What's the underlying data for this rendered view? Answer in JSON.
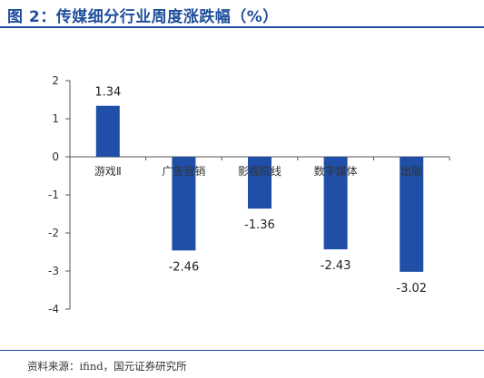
{
  "title": "图 2：传媒细分行业周度涨跌幅（%）",
  "source": "资料来源：ifind，国元证券研究所",
  "colors": {
    "bar": "#1f4fa6",
    "title": "#1f4e9c",
    "axis": "#555555"
  },
  "chart_data": {
    "type": "bar",
    "categories": [
      "游戏Ⅱ",
      "广告营销",
      "影视院线",
      "数字媒体",
      "出版"
    ],
    "values": [
      1.34,
      -2.46,
      -1.36,
      -2.43,
      -3.02
    ],
    "ylim": [
      -4,
      2
    ],
    "yticks": [
      "2",
      "1",
      "0",
      "-1",
      "-2",
      "-3",
      "-4"
    ],
    "data_labels": [
      "1.34",
      "-2.46",
      "-1.36",
      "-2.43",
      "-3.02"
    ],
    "grid": false,
    "legend": "none"
  }
}
